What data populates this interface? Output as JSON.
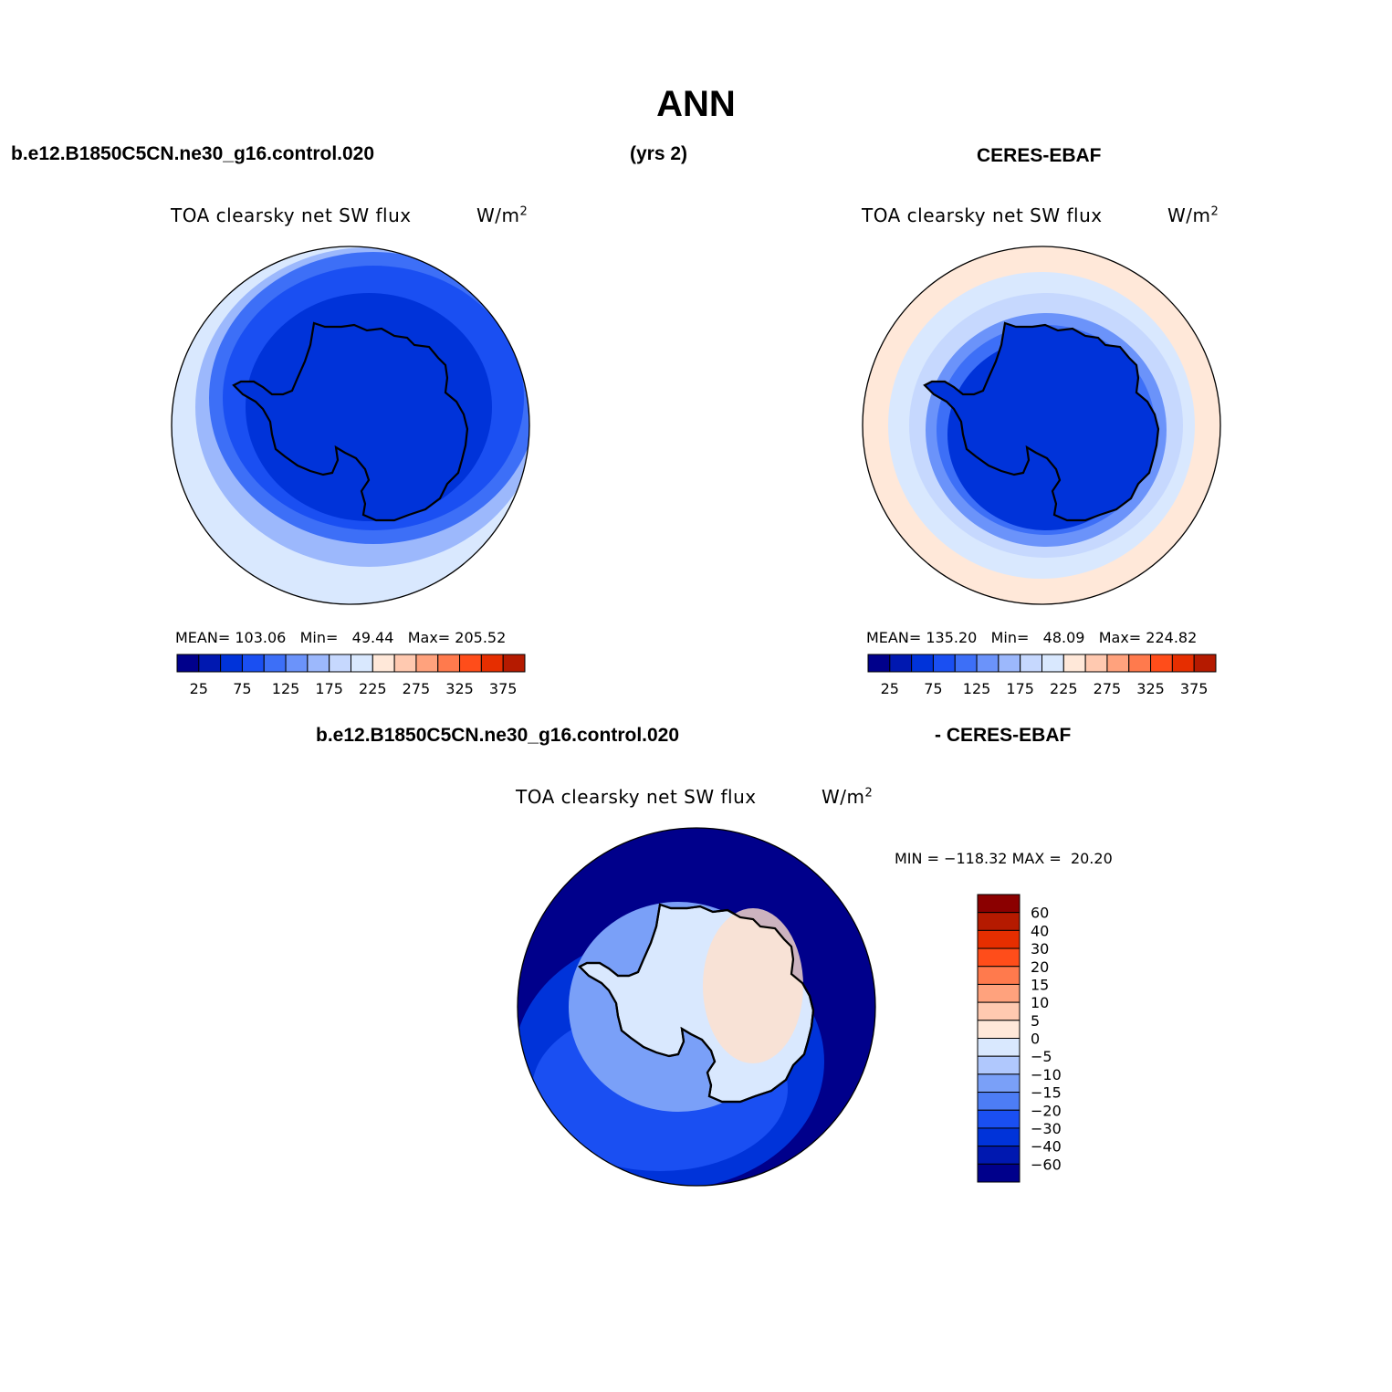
{
  "figure": {
    "title": "ANN",
    "case_name": "b.e12.B1850C5CN.ne30_g16.control.020",
    "years": "(yrs 2)",
    "obs_name": "CERES-EBAF",
    "diff_obs_label": "- CERES-EBAF"
  },
  "palette": {
    "levels": [
      "#00008b",
      "#0018b0",
      "#0033d9",
      "#1a4ff2",
      "#3d6ff7",
      "#6b93fa",
      "#9cb8fc",
      "#c6d8fe",
      "#d9e8fe",
      "#ffe8d9",
      "#ffc9b0",
      "#ffa27d",
      "#ff7a4d",
      "#ff4d1a",
      "#e62e00",
      "#b51a00",
      "#8b0000"
    ],
    "land_color": "#0033d9"
  },
  "panels": [
    {
      "id": "model",
      "variable": "TOA clearsky net SW flux",
      "units_base": "W/m",
      "units_sup": "2",
      "stats": {
        "mean_label": "MEAN=",
        "mean": "103.06",
        "min_label": "Min=",
        "min": "49.44",
        "max_label": "Max=",
        "max": "205.52"
      },
      "colorbar_ticks": [
        "25",
        "75",
        "125",
        "175",
        "225",
        "275",
        "325",
        "375"
      ]
    },
    {
      "id": "obs",
      "variable": "TOA clearsky net SW flux",
      "units_base": "W/m",
      "units_sup": "2",
      "stats": {
        "mean_label": "MEAN=",
        "mean": "135.20",
        "min_label": "Min=",
        "min": "48.09",
        "max_label": "Max=",
        "max": "224.82"
      },
      "colorbar_ticks": [
        "25",
        "75",
        "125",
        "175",
        "225",
        "275",
        "325",
        "375"
      ]
    },
    {
      "id": "diff",
      "variable": "TOA clearsky net SW flux",
      "units_base": "W/m",
      "units_sup": "2",
      "stats": {
        "min_label": "MIN =",
        "min": "−118.32",
        "max_label": "MAX =",
        "max": "20.20"
      },
      "colorbar_ticks": [
        "60",
        "40",
        "30",
        "20",
        "15",
        "10",
        "5",
        "0",
        "−5",
        "−10",
        "−15",
        "−20",
        "−30",
        "−40",
        "−60"
      ],
      "colorbar_colors": [
        "#8b0000",
        "#b51a00",
        "#e62e00",
        "#ff4d1a",
        "#ff7a4d",
        "#ffa27d",
        "#ffc9b0",
        "#ffe8d9",
        "#d9e8fe",
        "#b0c8fd",
        "#7aa0f8",
        "#4d7df5",
        "#1a4ff2",
        "#0033d9",
        "#0018b0",
        "#00008b"
      ]
    }
  ]
}
